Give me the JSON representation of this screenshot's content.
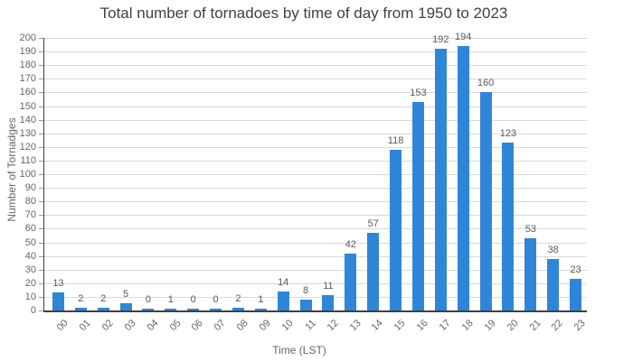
{
  "chart_data": {
    "type": "bar",
    "title": "Total number of tornadoes by time of day from 1950 to 2023",
    "xlabel": "Time (LST)",
    "ylabel": "Number of Tornadges",
    "categories": [
      "00",
      "01",
      "02",
      "03",
      "04",
      "05",
      "06",
      "07",
      "08",
      "09",
      "10",
      "11",
      "12",
      "13",
      "14",
      "15",
      "16",
      "17",
      "18",
      "19",
      "20",
      "21",
      "22",
      "23"
    ],
    "values": [
      13,
      2,
      2,
      5,
      0,
      1,
      0,
      0,
      2,
      1,
      14,
      8,
      11,
      42,
      57,
      118,
      153,
      192,
      194,
      160,
      123,
      53,
      38,
      23
    ],
    "ylim": [
      0,
      200
    ],
    "ytick_step": 10,
    "grid": true,
    "legend": "none",
    "bar_labels_shown": true
  },
  "colors": {
    "bar": "#2f86d9",
    "grid": "#d9d9d9",
    "axis": "#404040",
    "tick_label": "#666666",
    "value_label": "#595959",
    "title": "#404040",
    "background": "#ffffff"
  }
}
